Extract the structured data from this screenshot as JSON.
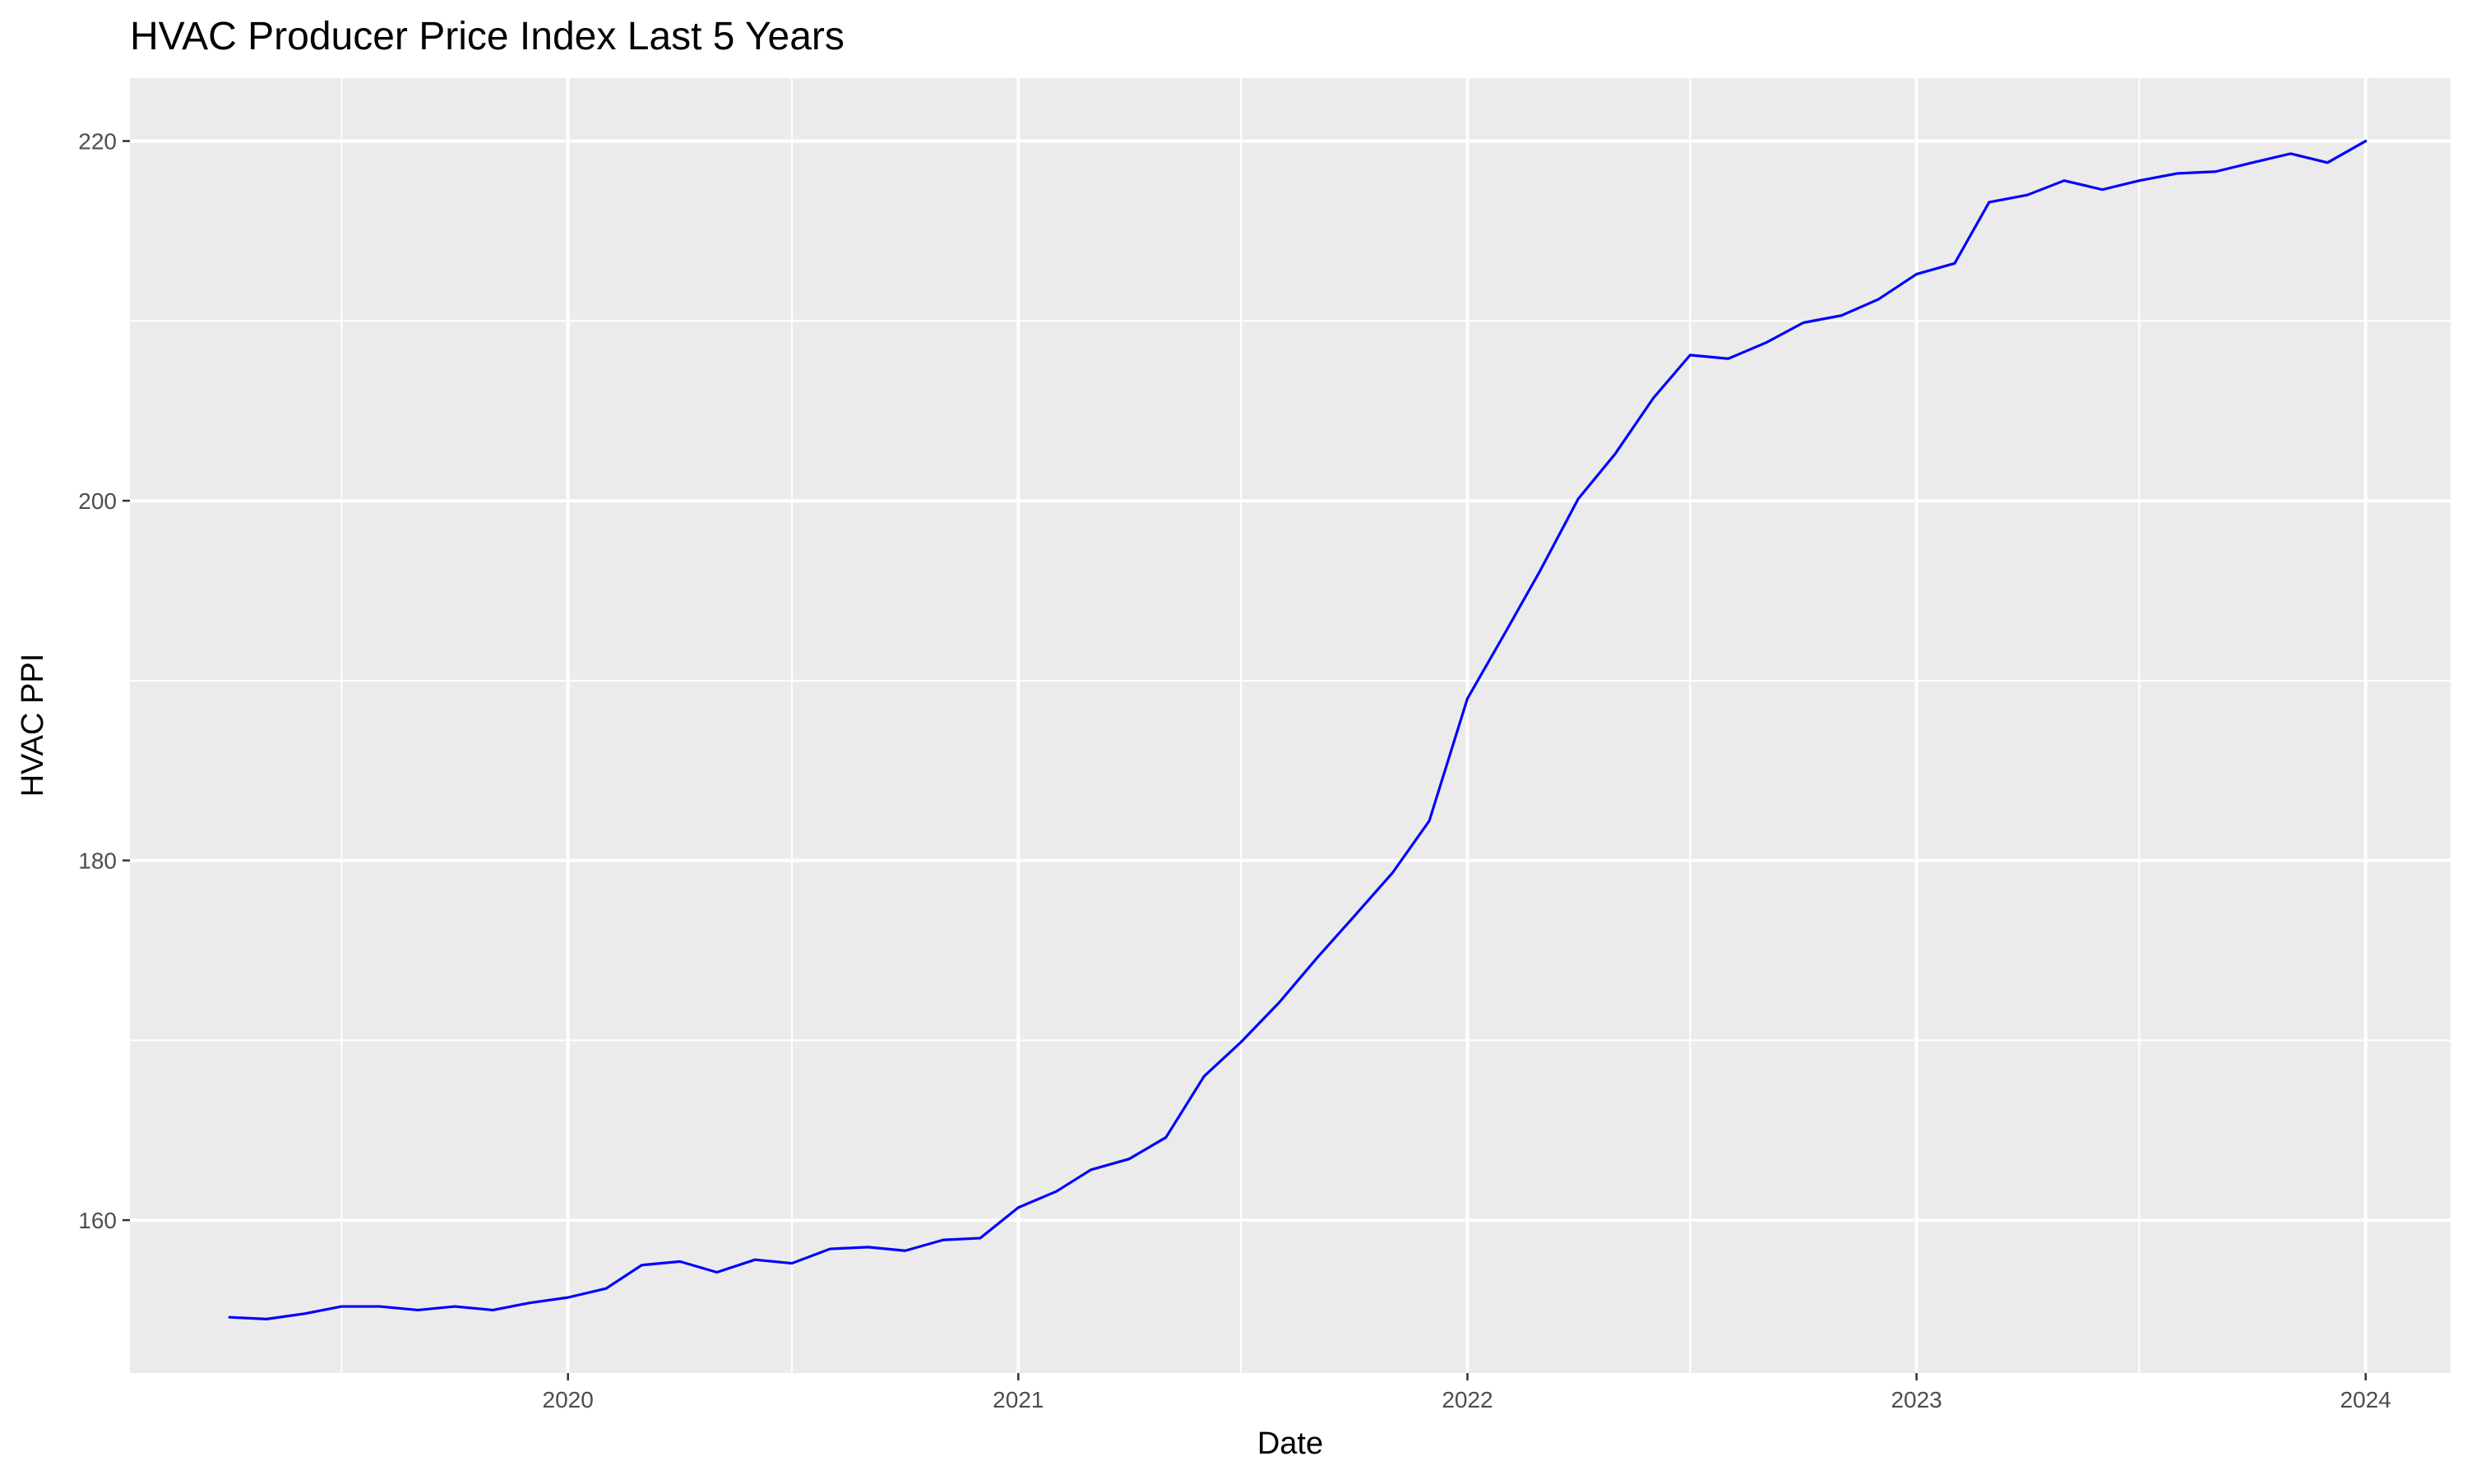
{
  "chart_data": {
    "type": "line",
    "title": "HVAC Producer Price Index Last 5 Years",
    "xlabel": "Date",
    "ylabel": "HVAC PPI",
    "x_range": [
      "2019-01-10",
      "2024-03-10"
    ],
    "ylim": [
      151.5,
      223.5
    ],
    "x_ticks": [
      {
        "date": "2020-01-01",
        "label": "2020"
      },
      {
        "date": "2021-01-01",
        "label": "2021"
      },
      {
        "date": "2022-01-01",
        "label": "2022"
      },
      {
        "date": "2023-01-01",
        "label": "2023"
      },
      {
        "date": "2024-01-01",
        "label": "2024"
      }
    ],
    "y_ticks": [
      160,
      180,
      200,
      220
    ],
    "y_minor_ticks": [
      170,
      190,
      210
    ],
    "x_minor_ticks": [
      "2019-07-01",
      "2020-07-01",
      "2021-07-01",
      "2022-07-01",
      "2023-07-01"
    ],
    "grid": true,
    "legend": "none",
    "series": [
      {
        "color": "#0000FF",
        "x": [
          "2019-04-01",
          "2019-05-01",
          "2019-06-01",
          "2019-07-01",
          "2019-08-01",
          "2019-09-01",
          "2019-10-01",
          "2019-11-01",
          "2019-12-01",
          "2020-01-01",
          "2020-02-01",
          "2020-03-01",
          "2020-04-01",
          "2020-05-01",
          "2020-06-01",
          "2020-07-01",
          "2020-08-01",
          "2020-09-01",
          "2020-10-01",
          "2020-11-01",
          "2020-12-01",
          "2021-01-01",
          "2021-02-01",
          "2021-03-01",
          "2021-04-01",
          "2021-05-01",
          "2021-06-01",
          "2021-07-01",
          "2021-08-01",
          "2021-09-01",
          "2021-10-01",
          "2021-11-01",
          "2021-12-01",
          "2022-01-01",
          "2022-02-01",
          "2022-03-01",
          "2022-04-01",
          "2022-05-01",
          "2022-06-01",
          "2022-07-01",
          "2022-08-01",
          "2022-09-01",
          "2022-10-01",
          "2022-11-01",
          "2022-12-01",
          "2023-01-01",
          "2023-02-01",
          "2023-03-01",
          "2023-04-01",
          "2023-05-01",
          "2023-06-01",
          "2023-07-01",
          "2023-08-01",
          "2023-09-01",
          "2023-10-01",
          "2023-11-01",
          "2023-12-01",
          "2024-01-01"
        ],
        "y": [
          154.6,
          154.5,
          154.8,
          155.2,
          155.2,
          155.0,
          155.2,
          155.0,
          155.4,
          155.7,
          156.2,
          157.5,
          157.7,
          157.1,
          157.8,
          157.6,
          158.4,
          158.5,
          158.3,
          158.9,
          159.0,
          160.7,
          161.6,
          162.8,
          163.4,
          164.6,
          168.0,
          169.9,
          172.1,
          174.6,
          176.9,
          179.3,
          182.2,
          189.0,
          192.7,
          196.1,
          200.1,
          202.6,
          205.7,
          208.1,
          207.9,
          208.8,
          209.9,
          210.3,
          211.2,
          212.6,
          213.2,
          216.6,
          217.0,
          217.8,
          217.3,
          217.8,
          218.2,
          218.3,
          218.8,
          219.3,
          218.8,
          220.0
        ]
      }
    ]
  }
}
